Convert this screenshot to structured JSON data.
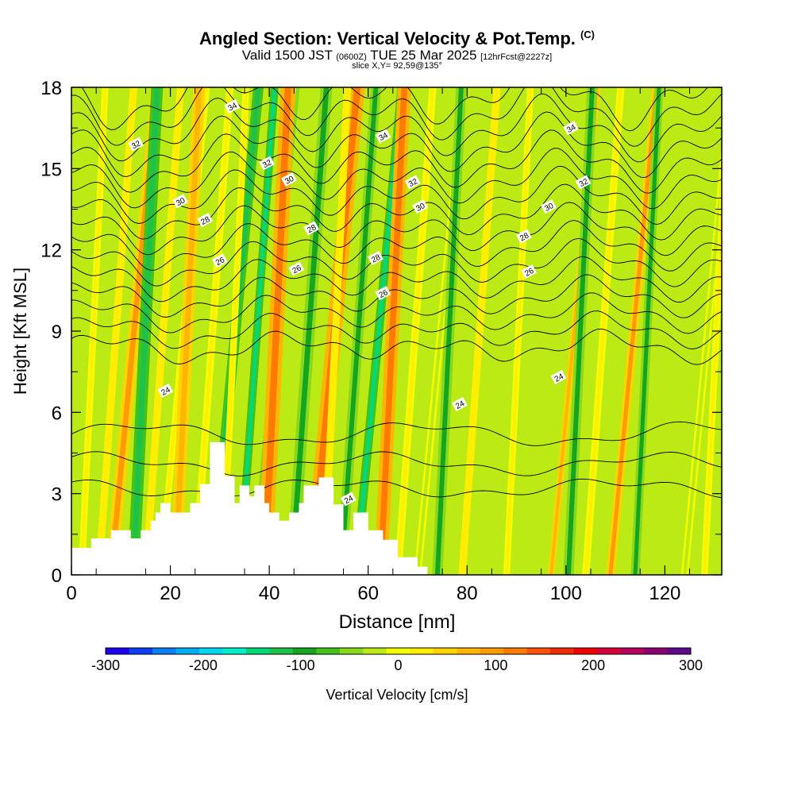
{
  "header": {
    "title": "Angled Section: Vertical Velocity & Pot.Temp.",
    "title_mark": "(C)",
    "subtitle_main": "Valid 1500 JST",
    "subtitle_z": "(0600Z)",
    "subtitle_date": "TUE 25 Mar 2025",
    "subtitle_fcst": "[12hrFcst@2227z]",
    "slice": "slice X,Y= 92,59@135°"
  },
  "chart_data": {
    "type": "heatmap",
    "xlabel": "Distance [nm]",
    "ylabel": "Height [Kft MSL]",
    "xlim": [
      0,
      131.5
    ],
    "ylim": [
      0,
      18
    ],
    "x_ticks": [
      0,
      20,
      40,
      60,
      80,
      100,
      120
    ],
    "y_ticks": [
      0,
      3,
      6,
      9,
      12,
      15,
      18
    ],
    "terrain_profile": [
      [
        0,
        1
      ],
      [
        4,
        1
      ],
      [
        4,
        1.35
      ],
      [
        8,
        1.35
      ],
      [
        8,
        1.65
      ],
      [
        12,
        1.65
      ],
      [
        12,
        1.35
      ],
      [
        14,
        1.35
      ],
      [
        14,
        1.65
      ],
      [
        16,
        1.65
      ],
      [
        16,
        2
      ],
      [
        17,
        2
      ],
      [
        17,
        2.3
      ],
      [
        18,
        2.3
      ],
      [
        18,
        2.65
      ],
      [
        20,
        2.65
      ],
      [
        20,
        2.3
      ],
      [
        24,
        2.3
      ],
      [
        24,
        2.65
      ],
      [
        26,
        2.65
      ],
      [
        26,
        3.35
      ],
      [
        28,
        3.35
      ],
      [
        28,
        4.9
      ],
      [
        31,
        4.9
      ],
      [
        31,
        3.65
      ],
      [
        33,
        3.65
      ],
      [
        33,
        2.65
      ],
      [
        34,
        2.65
      ],
      [
        34,
        3.3
      ],
      [
        36,
        3.3
      ],
      [
        36,
        2.9
      ],
      [
        37,
        2.9
      ],
      [
        37,
        3.3
      ],
      [
        39,
        3.3
      ],
      [
        39,
        2.65
      ],
      [
        40,
        2.65
      ],
      [
        40,
        2.3
      ],
      [
        42,
        2.3
      ],
      [
        42,
        2
      ],
      [
        44,
        2
      ],
      [
        44,
        2.3
      ],
      [
        46,
        2.3
      ],
      [
        46,
        2.65
      ],
      [
        47,
        2.65
      ],
      [
        47,
        3.3
      ],
      [
        50,
        3.3
      ],
      [
        50,
        3.6
      ],
      [
        53,
        3.6
      ],
      [
        53,
        2.6
      ],
      [
        55,
        2.6
      ],
      [
        55,
        1.65
      ],
      [
        57,
        1.65
      ],
      [
        57,
        2.3
      ],
      [
        60,
        2.3
      ],
      [
        60,
        1.65
      ],
      [
        63,
        1.65
      ],
      [
        63,
        1.3
      ],
      [
        66,
        1.3
      ],
      [
        66,
        0.65
      ],
      [
        70,
        0.65
      ],
      [
        70,
        0.3
      ],
      [
        72,
        0.3
      ],
      [
        72,
        0
      ]
    ],
    "vertical_velocity_bands": [
      {
        "x": 2,
        "w": 0.45,
        "v": 15
      },
      {
        "x": 5.5,
        "w": 0.5,
        "v": 25
      },
      {
        "x": 8,
        "w": 0.8,
        "v": 85
      },
      {
        "x": 12.5,
        "w": 0.8,
        "v": -110
      },
      {
        "x": 15,
        "w": 0.5,
        "v": 25
      },
      {
        "x": 18,
        "w": 0.45,
        "v": 20
      },
      {
        "x": 21,
        "w": 0.8,
        "v": 80
      },
      {
        "x": 25,
        "w": 0.5,
        "v": 15
      },
      {
        "x": 28.5,
        "w": 0.7,
        "v": -115
      },
      {
        "x": 30.5,
        "w": 0.45,
        "v": 20
      },
      {
        "x": 34,
        "w": 0.55,
        "v": -150
      },
      {
        "x": 36.5,
        "w": 0.5,
        "v": -60
      },
      {
        "x": 39,
        "w": 1.0,
        "v": 115
      },
      {
        "x": 44.5,
        "w": 0.8,
        "v": -95
      },
      {
        "x": 48.5,
        "w": 1.0,
        "v": 125
      },
      {
        "x": 51,
        "w": 0.5,
        "v": 25
      },
      {
        "x": 54.5,
        "w": 0.7,
        "v": -105
      },
      {
        "x": 57.5,
        "w": 0.6,
        "v": -140
      },
      {
        "x": 62.5,
        "w": 0.9,
        "v": 110
      },
      {
        "x": 66,
        "w": 0.5,
        "v": 15
      },
      {
        "x": 70,
        "w": 0.5,
        "v": -20
      },
      {
        "x": 74,
        "w": 0.7,
        "v": -95
      },
      {
        "x": 79,
        "w": 0.5,
        "v": 30
      },
      {
        "x": 84,
        "w": 0.5,
        "v": -30
      },
      {
        "x": 88,
        "w": 0.45,
        "v": 15
      },
      {
        "x": 93,
        "w": 0.55,
        "v": -35
      },
      {
        "x": 97,
        "w": 0.45,
        "v": 75
      },
      {
        "x": 100.5,
        "w": 0.7,
        "v": -95
      },
      {
        "x": 104,
        "w": 0.5,
        "v": 20
      },
      {
        "x": 109,
        "w": 0.6,
        "v": 90
      },
      {
        "x": 114,
        "w": 0.6,
        "v": -85
      },
      {
        "x": 118,
        "w": 0.5,
        "v": -30
      },
      {
        "x": 124,
        "w": 0.5,
        "v": -20
      },
      {
        "x": 128,
        "w": 0.45,
        "v": 15
      }
    ],
    "isentrope_labels": [
      {
        "text": "34",
        "x": 32.5,
        "y": 17.3
      },
      {
        "text": "32",
        "x": 13,
        "y": 15.9
      },
      {
        "text": "32",
        "x": 39.5,
        "y": 15.2
      },
      {
        "text": "30",
        "x": 22,
        "y": 13.8
      },
      {
        "text": "30",
        "x": 44,
        "y": 14.6
      },
      {
        "text": "28",
        "x": 27,
        "y": 13.1
      },
      {
        "text": "28",
        "x": 48.5,
        "y": 12.8
      },
      {
        "text": "26",
        "x": 30,
        "y": 11.6
      },
      {
        "text": "26",
        "x": 45.5,
        "y": 11.3
      },
      {
        "text": "34",
        "x": 63,
        "y": 16.2
      },
      {
        "text": "32",
        "x": 69,
        "y": 14.5
      },
      {
        "text": "30",
        "x": 70.5,
        "y": 13.6
      },
      {
        "text": "28",
        "x": 61.5,
        "y": 11.7
      },
      {
        "text": "26",
        "x": 63,
        "y": 10.4
      },
      {
        "text": "34",
        "x": 101,
        "y": 16.5
      },
      {
        "text": "32",
        "x": 103.5,
        "y": 14.5
      },
      {
        "text": "30",
        "x": 96.5,
        "y": 13.6
      },
      {
        "text": "28",
        "x": 91.5,
        "y": 12.5
      },
      {
        "text": "26",
        "x": 92.5,
        "y": 11.2
      },
      {
        "text": "24",
        "x": 19,
        "y": 6.8
      },
      {
        "text": "24",
        "x": 78.5,
        "y": 6.3
      },
      {
        "text": "24",
        "x": 98.5,
        "y": 7.3
      },
      {
        "text": "24",
        "x": 56,
        "y": 2.8
      }
    ],
    "colorbar": {
      "label": "Vertical Velocity [cm/s]",
      "min": -300,
      "max": 300,
      "ticks": [
        -300,
        -200,
        -100,
        0,
        100,
        200,
        300
      ],
      "colors": [
        "#1c00f2",
        "#0b3cf6",
        "#0a7ef4",
        "#00aef4",
        "#00d8f2",
        "#00f0cc",
        "#00d97a",
        "#1ec24a",
        "#14a61e",
        "#43c21a",
        "#88d81e",
        "#bcea14",
        "#f2ff00",
        "#ffee00",
        "#ffd400",
        "#ffb600",
        "#ff9a00",
        "#ff7a00",
        "#ff5200",
        "#f22a00",
        "#f20000",
        "#d9003a",
        "#b6005e",
        "#8a006e",
        "#5e0a8a"
      ]
    }
  }
}
